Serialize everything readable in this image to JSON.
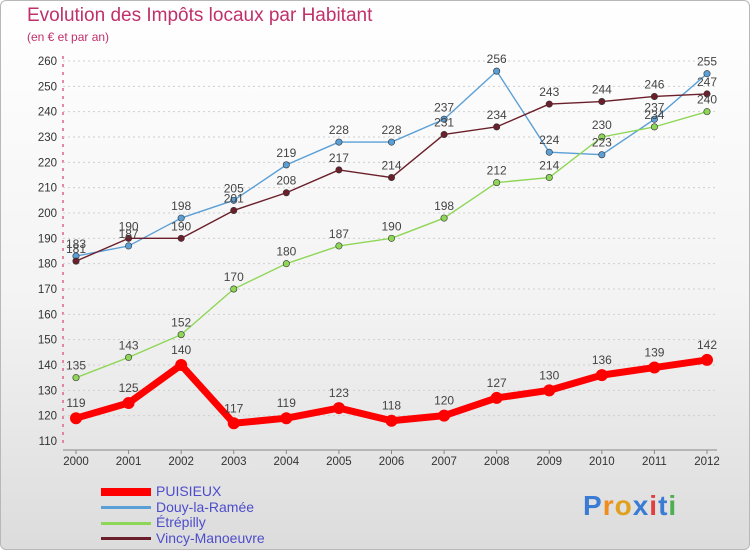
{
  "title": "Evolution des Impôts locaux par Habitant",
  "subtitle": "(en € et par an)",
  "logo_text": "Proxiti",
  "colors": {
    "title": "#c0306a",
    "legend_text": "#4d4dcc",
    "grid": "#e06090",
    "axis_text": "#333333"
  },
  "chart_data": {
    "type": "line",
    "title": "Evolution des Impôts locaux par Habitant",
    "subtitle": "(en € et par an)",
    "xlabel": "",
    "ylabel": "",
    "x": [
      "2000",
      "2001",
      "2002",
      "2003",
      "2004",
      "2005",
      "2006",
      "2007",
      "2008",
      "2009",
      "2010",
      "2011",
      "2012"
    ],
    "ylim": [
      110,
      260
    ],
    "yticks": [
      110,
      120,
      130,
      140,
      150,
      160,
      170,
      180,
      190,
      200,
      210,
      220,
      230,
      240,
      250,
      260
    ],
    "grid": "horizontal dashed",
    "legend_position": "bottom-left",
    "series": [
      {
        "name": "PUISIEUX",
        "color": "#ff0000",
        "values": [
          119,
          125,
          140,
          117,
          119,
          123,
          118,
          120,
          127,
          130,
          136,
          139,
          142
        ]
      },
      {
        "name": "Douy-la-Ramée",
        "color": "#5a9fd6",
        "values": [
          183,
          187,
          198,
          205,
          219,
          228,
          228,
          237,
          256,
          224,
          223,
          237,
          255
        ]
      },
      {
        "name": "Étrépilly",
        "color": "#8ed656",
        "values": [
          135,
          143,
          152,
          170,
          180,
          187,
          190,
          198,
          212,
          214,
          230,
          234,
          240
        ]
      },
      {
        "name": "Vincy-Manoeuvre",
        "color": "#6b1f2a",
        "values": [
          181,
          190,
          190,
          201,
          208,
          217,
          214,
          231,
          234,
          243,
          244,
          246,
          247
        ]
      }
    ],
    "data_labels": [
      {
        "series": 0,
        "values": [
          "119",
          "125",
          "140",
          "117",
          "119",
          "123",
          "118",
          "120",
          "127",
          "130",
          "136",
          "139",
          "142"
        ]
      },
      {
        "series": 1,
        "values": [
          "183",
          "187",
          "198",
          "205",
          "219",
          "228",
          "228",
          "237",
          "256",
          "224",
          "223",
          "237",
          "255"
        ]
      },
      {
        "series": 2,
        "values": [
          "135",
          "143",
          "152",
          "170",
          "180",
          "187",
          "190",
          "198",
          "212",
          "214",
          "230",
          "234",
          "240"
        ]
      },
      {
        "series": 3,
        "values": [
          "181",
          "190",
          "190",
          "201",
          "208",
          "217",
          "214",
          "231",
          "234",
          "243",
          "244",
          "246",
          "247"
        ]
      }
    ]
  }
}
